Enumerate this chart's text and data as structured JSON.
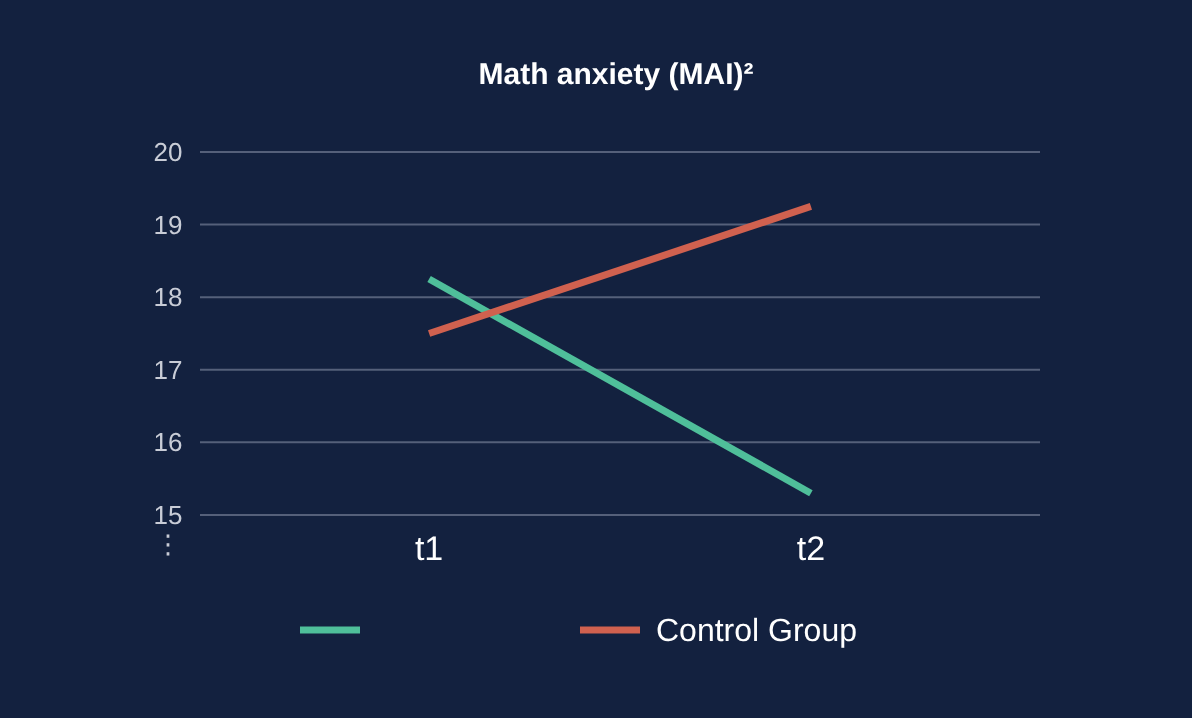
{
  "chart_data": {
    "type": "line",
    "title": "Math anxiety (MAI)²",
    "categories": [
      "t1",
      "t2"
    ],
    "series": [
      {
        "color": "#4fbf9a",
        "values": [
          18.25,
          15.3
        ]
      },
      {
        "name": "Control Group",
        "color": "#d0614f",
        "values": [
          17.5,
          19.25
        ]
      }
    ],
    "ylim": [
      14.6,
      20
    ],
    "yticks": [
      {
        "value": 14.6,
        "label": "⋮"
      },
      15,
      16,
      17,
      18,
      19,
      20
    ],
    "grid": "y",
    "legend": "bottom"
  }
}
